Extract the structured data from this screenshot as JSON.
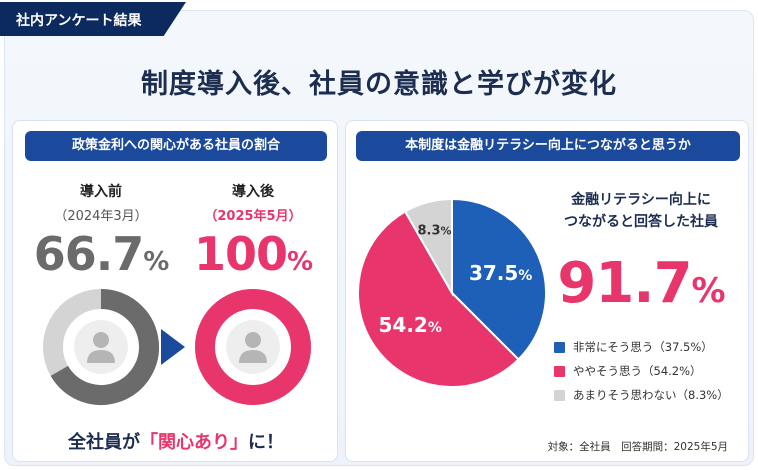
{
  "tag": "社内アンケート結果",
  "title": "制度導入後、社員の意識と学びが変化",
  "left": {
    "header": "政策金利への関心がある社員の割合",
    "before": {
      "label": "導入前",
      "date": "（2024年3月）",
      "value": "66.7",
      "unit": "%"
    },
    "after": {
      "label": "導入後",
      "date": "（2025年5月）",
      "value": "100",
      "unit": "%"
    },
    "footer_pre": "全社員が",
    "footer_hl": "「関心あり」",
    "footer_post": "に！"
  },
  "right": {
    "header": "本制度は金融リテラシー向上につながると思うか",
    "head_line1": "金融リテラシー向上に",
    "head_line2": "つながると回答した社員",
    "big_value": "91.7",
    "big_unit": "%",
    "footnote": "対象：全社員　回答期間：2025年5月"
  },
  "colors": {
    "navy": "#1b4a9c",
    "pink": "#e8356b",
    "gray": "#d4d4d4",
    "dark_gray": "#6b6b6b"
  },
  "chart_data": [
    {
      "type": "pie",
      "title": "政策金利への関心がある社員の割合",
      "donuts": [
        {
          "label": "導入前",
          "date": "2024年3月",
          "value": 66.7
        },
        {
          "label": "導入後",
          "date": "2025年5月",
          "value": 100
        }
      ]
    },
    {
      "type": "pie",
      "title": "本制度は金融リテラシー向上につながると思うか",
      "slices": [
        {
          "name": "非常にそう思う（37.5%）",
          "value": 37.5,
          "label": "37.5",
          "color": "#1e5fb8"
        },
        {
          "name": "ややそう思う（54.2%）",
          "value": 54.2,
          "label": "54.2",
          "color": "#e8356b"
        },
        {
          "name": "あまりそう思わない（8.3%）",
          "value": 8.3,
          "label": "8.3",
          "color": "#d4d4d4"
        }
      ],
      "unit": "%"
    }
  ]
}
